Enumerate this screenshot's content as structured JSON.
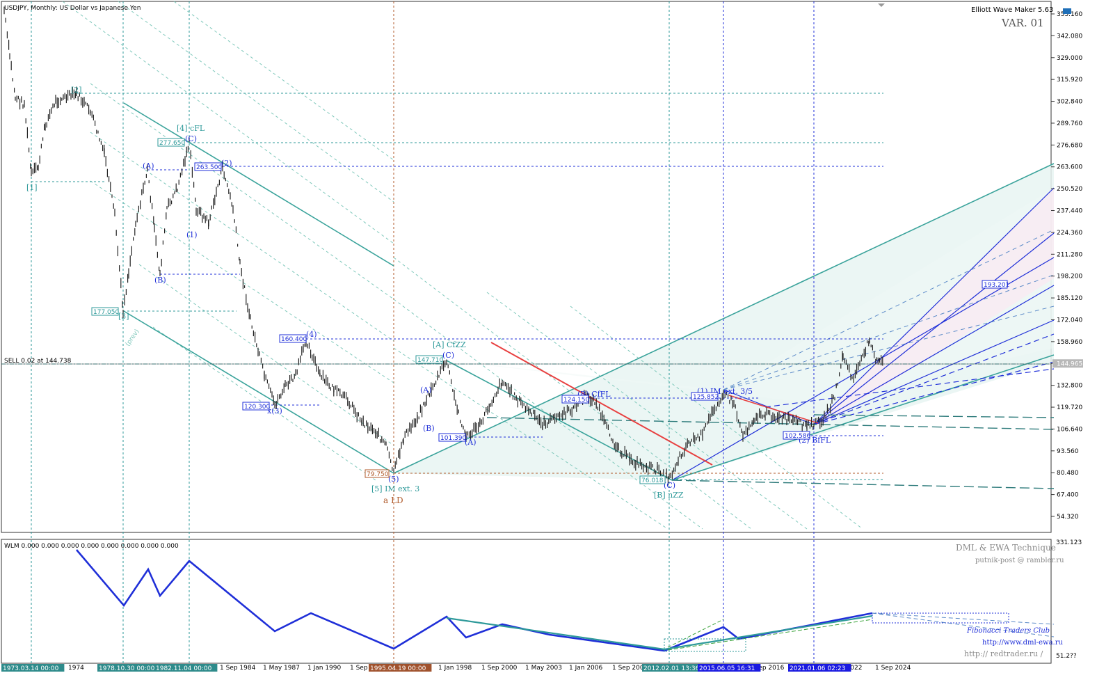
{
  "header": {
    "symbol_title": "USDJPY, Monthly:  US Dollar vs Japanese Yen",
    "indicator_name": "Elliott Wave Maker 5.63",
    "variant": "VAR. 01"
  },
  "price_axis": {
    "labels": [
      "355.160",
      "342.080",
      "329.000",
      "315.920",
      "302.840",
      "289.760",
      "276.680",
      "263.600",
      "250.520",
      "237.440",
      "224.360",
      "211.280",
      "198.200",
      "185.120",
      "172.040",
      "158.960",
      "144.965",
      "132.800",
      "119.720",
      "106.640",
      "93.560",
      "80.480",
      "67.400",
      "54.320"
    ],
    "current_price": "144.965"
  },
  "sell_line": {
    "label": "SELL 0.02 at 144.738",
    "price": 144.738
  },
  "price_tags": [
    "277.650",
    "263.500",
    "177.050",
    "160.400",
    "147.710",
    "124.150",
    "120.300",
    "101.390",
    "79.750",
    "76.018",
    "125.852",
    "102.586",
    "193.201"
  ],
  "wave_labels": [
    "[1]",
    "[2]",
    "[3]",
    "[4] cFL",
    "(C)",
    "(A)",
    "(B)",
    "(1)",
    "(2)",
    "(4)",
    "x(3)",
    "(5)",
    "[5] IM ext. 3",
    "a LD",
    "[A] CfZZ",
    "(C)",
    "(A)",
    "(B)",
    "(A)",
    "(B) CfFL",
    "(C)",
    "[B] nZZ",
    "(1) IM ext. 3/5",
    "(2) BfFL",
    "(prev)"
  ],
  "sub_window": {
    "label": "WLM 0.000 0.000 0.000 0.000 0.000 0.000 0.000 0.000",
    "axis_labels": [
      "331.123",
      "51.2??"
    ],
    "credits": [
      "DML & EWA Technique",
      "putnik-post @ rambler.ru",
      "Fibonacci   Traders   Club",
      "http://www.dml-ewa.ru",
      "http:// redtrader.ru /"
    ]
  },
  "time_axis": {
    "labels": [
      "1974",
      "1 Sep 1984",
      "1 May 1987",
      "1 Jan 1990",
      "1 Sep",
      "95",
      "1 Jan 1998",
      "1 Sep 2000",
      "1 May 2003",
      "1 Jan 2006",
      "1 Sep 2008",
      "1 Sep 2016",
      "n 2022",
      "1 Sep 2024"
    ],
    "markers": [
      {
        "text": "1973.03.14 00:00",
        "color": "#2e8b8b"
      },
      {
        "text": "1978.10.30 00:00",
        "color": "#2e8b8b"
      },
      {
        "text": "1982.11.04 00:00",
        "color": "#2e8b8b"
      },
      {
        "text": "1995.04.19 00:00",
        "color": "#a0522d"
      },
      {
        "text": "2012.02.01 13:36",
        "color": "#2e8b8b"
      },
      {
        "text": "2015.06.05 16:31",
        "color": "#1a1ae0"
      },
      {
        "text": "2021.01.06 02:23",
        "color": "#1a1ae0"
      }
    ]
  },
  "colors": {
    "teal": "#2e9a9a",
    "blue": "#1f2fd8",
    "brown": "#b05a2a",
    "red": "#e84040",
    "candle": "#222222"
  }
}
